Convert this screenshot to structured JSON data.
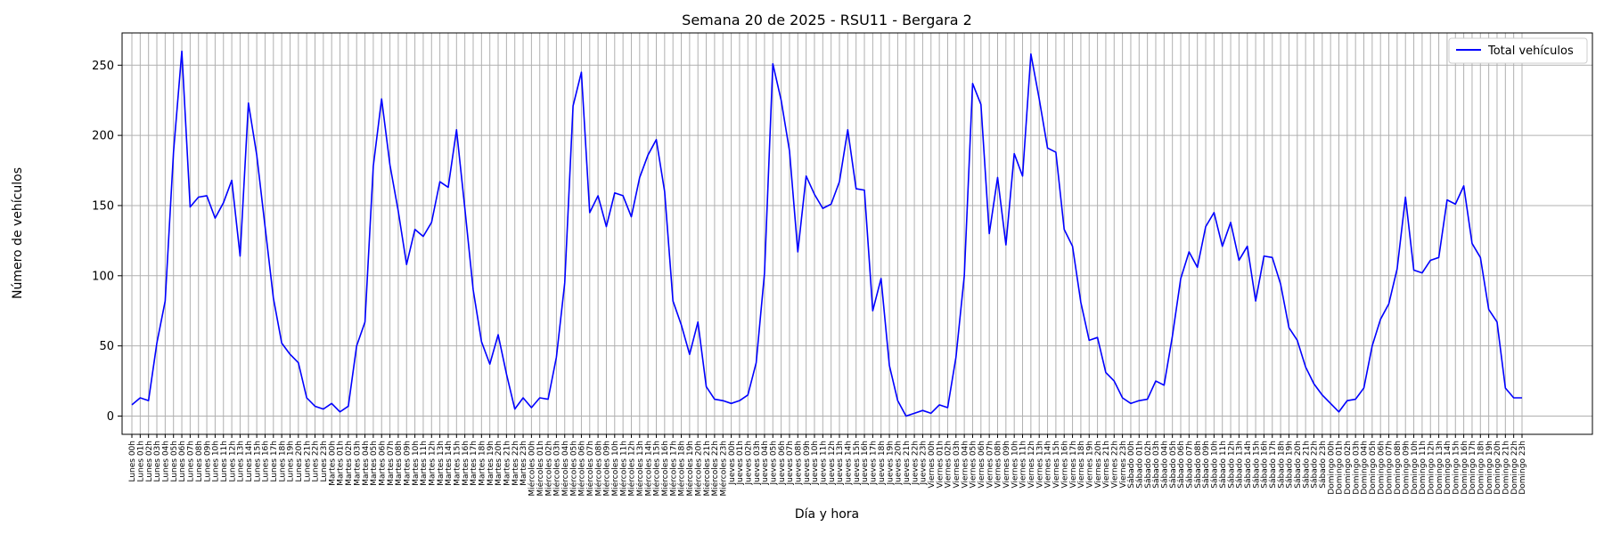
{
  "chart_data": {
    "type": "line",
    "title": "Semana 20 de 2025 - RSU11 - Bergara 2",
    "xlabel": "Día y hora",
    "ylabel": "Número de vehículos",
    "ylim": [
      -13,
      273
    ],
    "yticks": [
      0,
      50,
      100,
      150,
      200,
      250
    ],
    "grid": true,
    "legend_position": "top-right",
    "days": [
      "Lunes",
      "Martes",
      "Miércoles",
      "Jueves",
      "Viernes",
      "Sábado",
      "Domingo"
    ],
    "hours": [
      "00h",
      "01h",
      "02h",
      "03h",
      "04h",
      "05h",
      "06h",
      "07h",
      "08h",
      "09h",
      "10h",
      "11h",
      "12h",
      "13h",
      "14h",
      "15h",
      "16h",
      "17h",
      "18h",
      "19h",
      "20h",
      "21h",
      "22h",
      "23h"
    ],
    "series": [
      {
        "name": "Total vehículos",
        "color": "#0000ff",
        "values": [
          8,
          13,
          11,
          52,
          82,
          188,
          260,
          149,
          156,
          157,
          141,
          152,
          168,
          114,
          223,
          186,
          135,
          84,
          52,
          44,
          38,
          13,
          7,
          5,
          9,
          3,
          7,
          50,
          67,
          178,
          226,
          179,
          146,
          108,
          133,
          128,
          138,
          167,
          163,
          204,
          148,
          90,
          53,
          37,
          58,
          30,
          5,
          13,
          6,
          13,
          12,
          42,
          95,
          221,
          245,
          145,
          157,
          135,
          159,
          157,
          142,
          170,
          186,
          197,
          160,
          82,
          65,
          44,
          67,
          21,
          12,
          11,
          9,
          11,
          15,
          38,
          102,
          251,
          225,
          189,
          117,
          171,
          158,
          148,
          151,
          167,
          204,
          162,
          161,
          75,
          98,
          36,
          11,
          0,
          2,
          4,
          2,
          8,
          6,
          42,
          100,
          237,
          222,
          130,
          170,
          122,
          187,
          171,
          258,
          226,
          191,
          188,
          133,
          121,
          81,
          54,
          56,
          31,
          25,
          13,
          9,
          11,
          12,
          25,
          22,
          57,
          98,
          117,
          106,
          135,
          145,
          121,
          138,
          111,
          121,
          82,
          114,
          113,
          94,
          63,
          54,
          35,
          23,
          15,
          9,
          3,
          11,
          12,
          20,
          50,
          69,
          80,
          105,
          156,
          104,
          102,
          111,
          113,
          154,
          151,
          164,
          123,
          113,
          76,
          67,
          20,
          13,
          13
        ]
      }
    ]
  }
}
